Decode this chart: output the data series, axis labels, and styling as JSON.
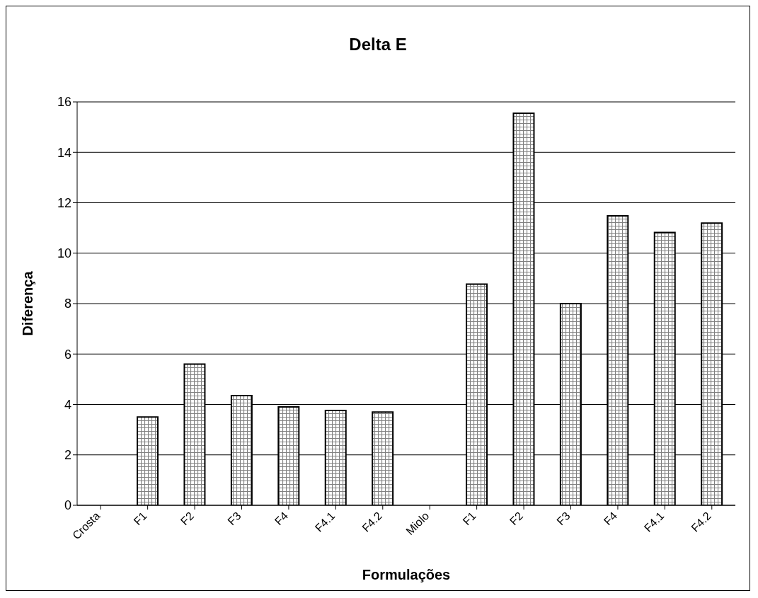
{
  "chart_data": {
    "type": "bar",
    "title": "Delta E",
    "xlabel": "Formulações",
    "ylabel": "Diferença",
    "categories": [
      "Crosta",
      "F1",
      "F2",
      "F3",
      "F4",
      "F4.1",
      "F4.2",
      "Miolo",
      "F1",
      "F2",
      "F3",
      "F4",
      "F4.1",
      "F4.2"
    ],
    "values": [
      null,
      3.5,
      5.6,
      4.35,
      3.9,
      3.76,
      3.7,
      null,
      8.77,
      15.55,
      8.0,
      11.48,
      10.82,
      11.19
    ],
    "color": "#000000",
    "ylim": [
      0,
      16
    ],
    "yticks": [
      0,
      2,
      4,
      6,
      8,
      10,
      12,
      14,
      16
    ],
    "grid": "y"
  }
}
